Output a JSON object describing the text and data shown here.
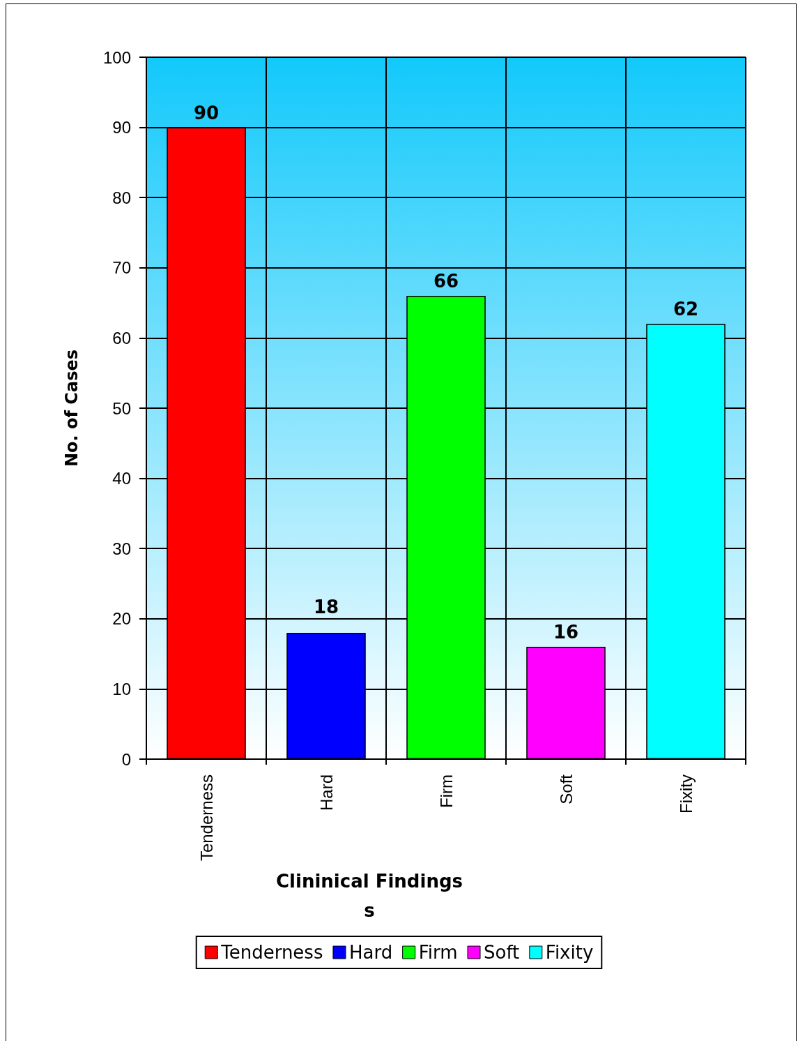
{
  "chart_data": {
    "type": "bar",
    "xlabel": "Clininical Findings\ns",
    "ylabel": "No. of Cases",
    "categories": [
      "Tenderness",
      "Hard",
      "Firm",
      "Soft",
      "Fixity"
    ],
    "series": [
      {
        "name": "Tenderness",
        "color": "#ff0000",
        "values": [
          90,
          null,
          null,
          null,
          null
        ]
      },
      {
        "name": "Hard",
        "color": "#0000ff",
        "values": [
          null,
          18,
          null,
          null,
          null
        ]
      },
      {
        "name": "Firm",
        "color": "#00ff00",
        "values": [
          null,
          null,
          66,
          null,
          null
        ]
      },
      {
        "name": "Soft",
        "color": "#ff00ff",
        "values": [
          null,
          null,
          null,
          16,
          null
        ]
      },
      {
        "name": "Fixity",
        "color": "#00ffff",
        "values": [
          null,
          null,
          null,
          null,
          62
        ]
      }
    ],
    "stacked": true,
    "ylim": [
      0,
      100
    ],
    "yticks": [
      0,
      10,
      20,
      30,
      40,
      50,
      60,
      70,
      80,
      90,
      100
    ],
    "grid": true,
    "legend": "bottom",
    "data_labels": true
  }
}
